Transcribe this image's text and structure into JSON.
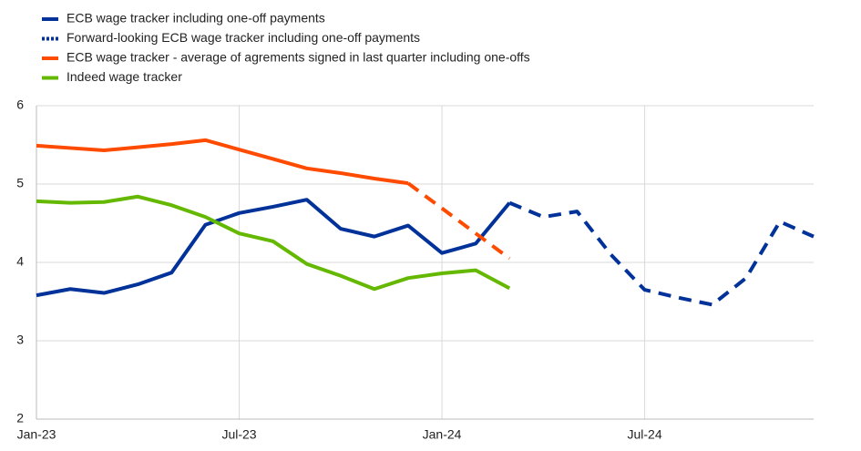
{
  "chart_data": {
    "type": "line",
    "x": [
      0,
      1,
      2,
      3,
      4,
      5,
      6,
      7,
      8,
      9,
      10,
      11,
      12,
      13,
      14,
      15,
      16,
      17,
      18,
      19,
      20,
      21,
      22,
      23
    ],
    "xlim": [
      0,
      23
    ],
    "xticks": [
      {
        "value": 0,
        "label": "Jan-23"
      },
      {
        "value": 6,
        "label": "Jul-23"
      },
      {
        "value": 12,
        "label": "Jan-24"
      },
      {
        "value": 18,
        "label": "Jul-24"
      }
    ],
    "ylim": [
      2,
      6
    ],
    "yticks": [
      2,
      3,
      4,
      5,
      6
    ],
    "grid": true,
    "legend": "top-left",
    "series": [
      {
        "name": "ECB wage tracker including one-off payments",
        "color": "#003299",
        "dashed": false,
        "values": [
          3.58,
          3.66,
          3.61,
          3.72,
          3.87,
          4.48,
          4.63,
          4.71,
          4.8,
          4.43,
          4.33,
          4.47,
          4.12,
          4.24,
          4.76,
          null,
          null,
          null,
          null,
          null,
          null,
          null,
          null,
          null
        ]
      },
      {
        "name": "Forward-looking ECB wage tracker including one-off payments",
        "color": "#003299",
        "dashed": true,
        "values": [
          null,
          null,
          null,
          null,
          null,
          null,
          null,
          null,
          null,
          null,
          null,
          null,
          null,
          null,
          4.76,
          4.58,
          4.65,
          4.1,
          3.65,
          3.55,
          3.46,
          3.8,
          4.52,
          4.33
        ]
      },
      {
        "name": "ECB wage tracker -  average of agrements signed in last quarter including one-offs",
        "color": "#ff4b00",
        "dashed": false,
        "dashed_from": 11,
        "values": [
          5.49,
          5.46,
          5.43,
          5.47,
          5.51,
          5.56,
          5.44,
          5.32,
          5.2,
          5.14,
          5.07,
          5.01,
          4.69,
          4.37,
          4.05,
          null,
          null,
          null,
          null,
          null,
          null,
          null,
          null,
          null
        ]
      },
      {
        "name": "Indeed wage tracker",
        "color": "#65b800",
        "dashed": false,
        "values": [
          4.78,
          4.76,
          4.77,
          4.84,
          4.73,
          4.58,
          4.37,
          4.27,
          3.98,
          3.83,
          3.66,
          3.8,
          3.86,
          3.9,
          3.67,
          null,
          null,
          null,
          null,
          null,
          null,
          null,
          null,
          null
        ]
      }
    ]
  }
}
